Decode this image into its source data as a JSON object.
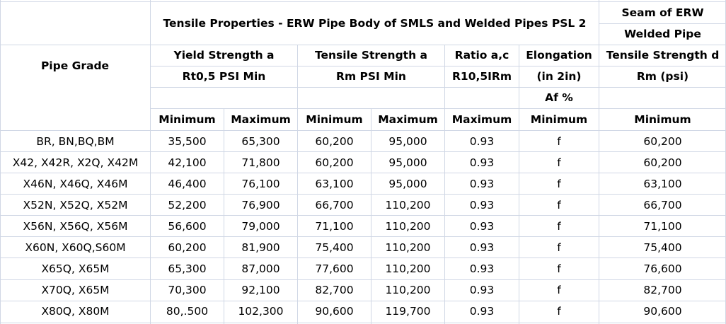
{
  "table": {
    "group_title": "Tensile Properties - ERW Pipe Body of SMLS and Welded Pipes PSL 2",
    "seam_title_line1": "Seam of ERW",
    "seam_title_line2": "Welded Pipe",
    "pipe_grade_header": "Pipe Grade",
    "yield_line1": "Yield Strength a",
    "yield_line2": "Rt0,5  PSI Min",
    "tensile_line1": "Tensile Strength a",
    "tensile_line2": "Rm  PSI Min",
    "ratio_line1": "Ratio a,c",
    "ratio_line2": "R10,5IRm",
    "elong_line1": "Elongation",
    "elong_line2": "(in 2in)",
    "elong_line3": "Af %",
    "seam_ts_line1": "Tensile Strength d",
    "seam_ts_line2": "Rm (psi)",
    "subheaders": [
      "Minimum",
      "Maximum",
      "Minimum",
      "Maximum",
      "Maximum",
      "Minimum",
      "Minimum"
    ],
    "rows": [
      {
        "grade": "BR, BN,BQ,BM",
        "y_min": "35,500",
        "y_max": "65,300",
        "t_min": "60,200",
        "t_max": "95,000",
        "ratio": "0.93",
        "elong": "f",
        "seam": "60,200"
      },
      {
        "grade": "X42, X42R, X2Q, X42M",
        "y_min": "42,100",
        "y_max": "71,800",
        "t_min": "60,200",
        "t_max": "95,000",
        "ratio": "0.93",
        "elong": "f",
        "seam": "60,200"
      },
      {
        "grade": "X46N, X46Q, X46M",
        "y_min": "46,400",
        "y_max": "76,100",
        "t_min": "63,100",
        "t_max": "95,000",
        "ratio": "0.93",
        "elong": "f",
        "seam": "63,100"
      },
      {
        "grade": "X52N, X52Q, X52M",
        "y_min": "52,200",
        "y_max": "76,900",
        "t_min": "66,700",
        "t_max": "110,200",
        "ratio": "0.93",
        "elong": "f",
        "seam": "66,700"
      },
      {
        "grade": "X56N, X56Q, X56M",
        "y_min": "56,600",
        "y_max": "79,000",
        "t_min": "71,100",
        "t_max": "110,200",
        "ratio": "0.93",
        "elong": "f",
        "seam": "71,100"
      },
      {
        "grade": "X60N, X60Q,S60M",
        "y_min": "60,200",
        "y_max": "81,900",
        "t_min": "75,400",
        "t_max": "110,200",
        "ratio": "0.93",
        "elong": "f",
        "seam": "75,400"
      },
      {
        "grade": "X65Q, X65M",
        "y_min": "65,300",
        "y_max": "87,000",
        "t_min": "77,600",
        "t_max": "110,200",
        "ratio": "0.93",
        "elong": "f",
        "seam": "76,600"
      },
      {
        "grade": "X70Q, X65M",
        "y_min": "70,300",
        "y_max": "92,100",
        "t_min": "82,700",
        "t_max": "110,200",
        "ratio": "0.93",
        "elong": "f",
        "seam": "82,700"
      },
      {
        "grade": "X80Q, X80M",
        "y_min": "80,.500",
        "y_max": "102,300",
        "t_min": "90,600",
        "t_max": "119,700",
        "ratio": "0.93",
        "elong": "f",
        "seam": "90,600"
      }
    ]
  }
}
